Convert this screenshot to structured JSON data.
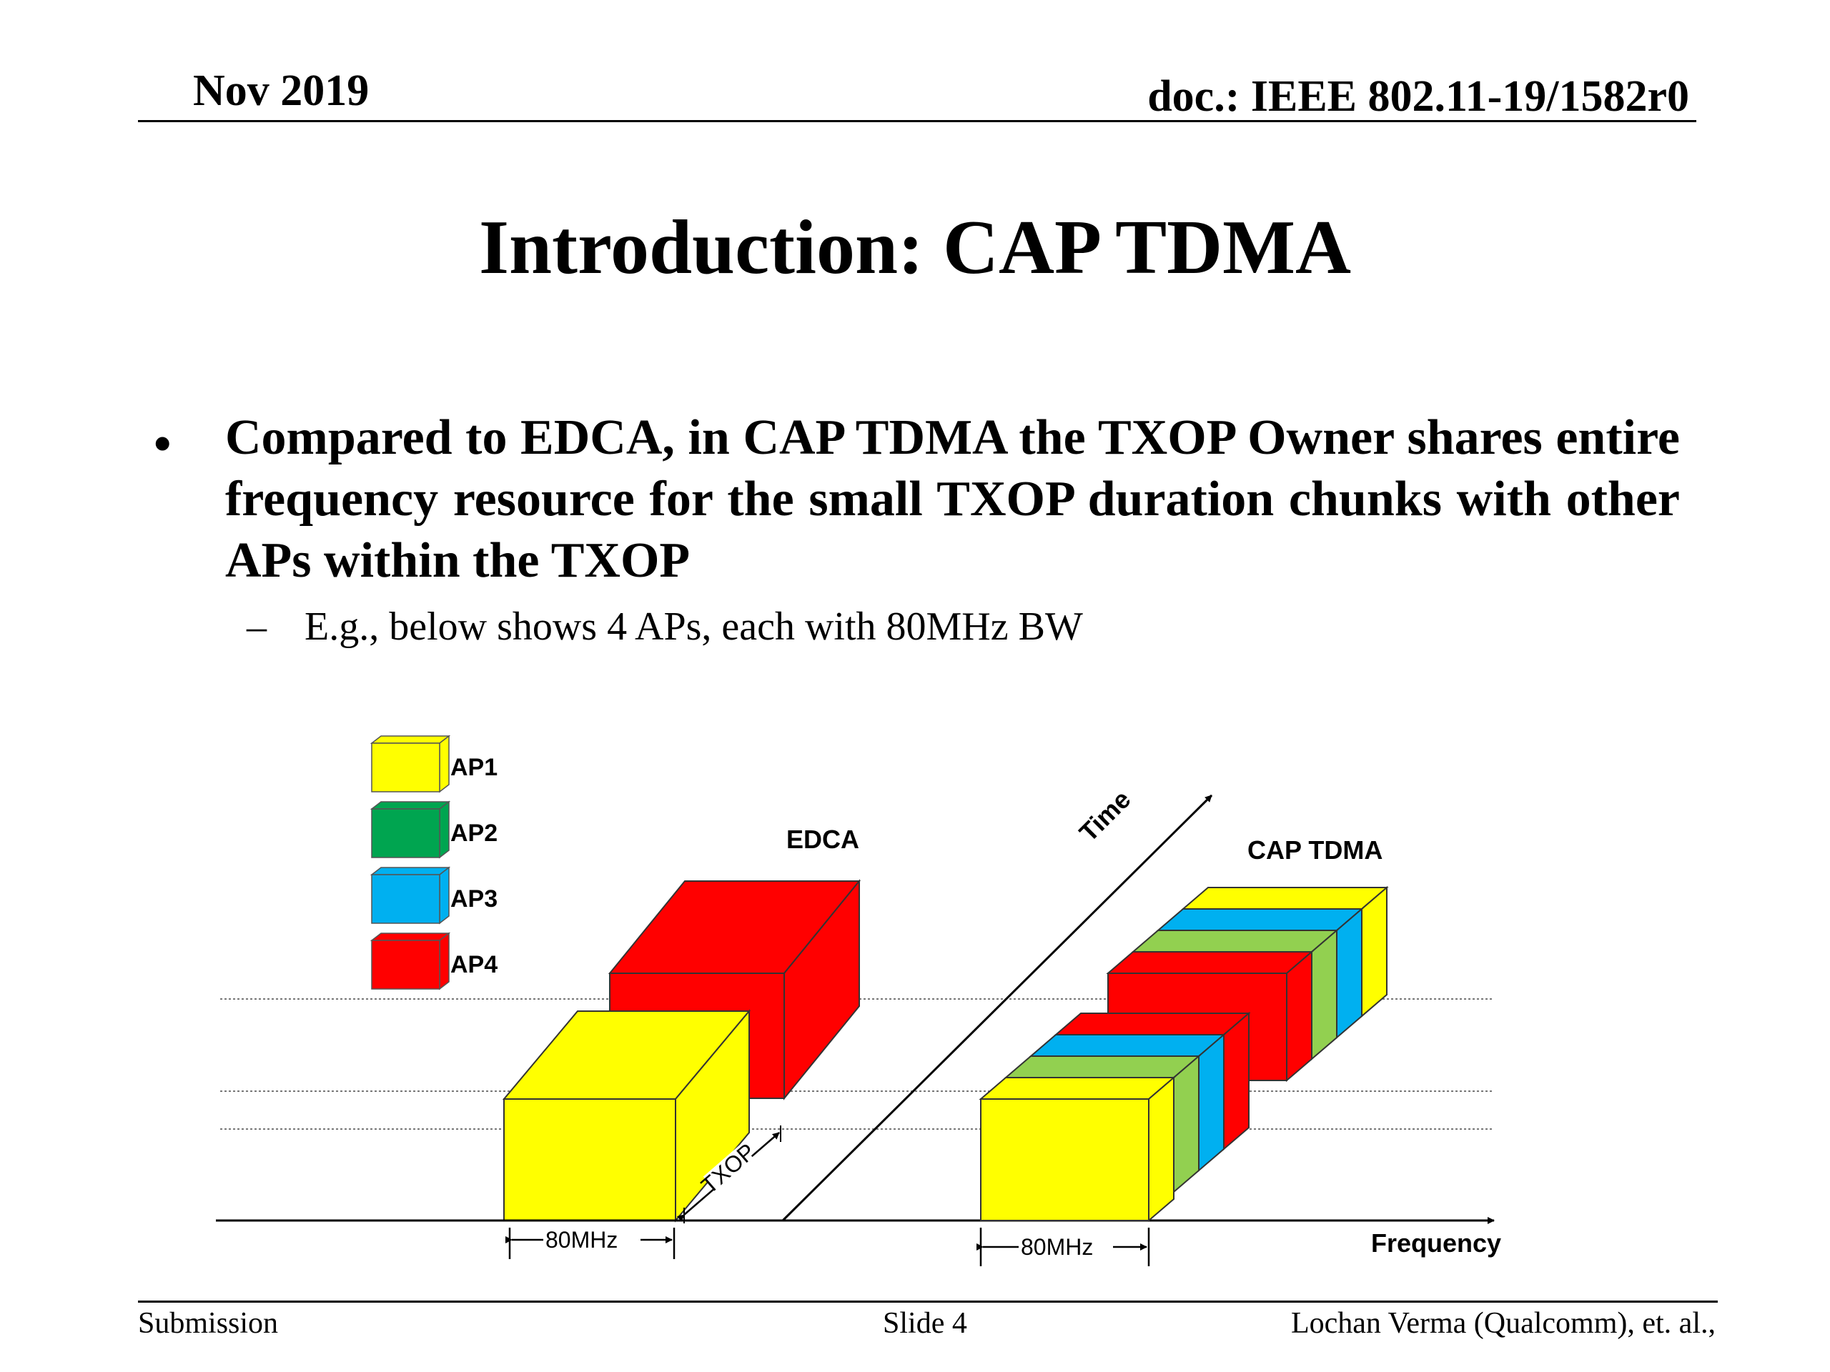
{
  "header": {
    "date": "Nov 2019",
    "doc": "doc.: IEEE 802.11-19/1582r0"
  },
  "title": "Introduction: CAP TDMA",
  "bullet": {
    "symbol": "•",
    "text": "Compared to EDCA, in CAP TDMA the TXOP Owner shares entire frequency resource for the small TXOP duration chunks with other APs within the TXOP",
    "sub_symbol": "–",
    "sub_text": "E.g., below shows 4 APs, each with 80MHz BW"
  },
  "diagram": {
    "legend": [
      {
        "label": "AP1",
        "color": "#FFFF00"
      },
      {
        "label": "AP2",
        "color": "#00A550"
      },
      {
        "label": "AP3",
        "color": "#00B0F0"
      },
      {
        "label": "AP4",
        "color": "#FF0000"
      }
    ],
    "edca_label": "EDCA",
    "cap_label": "CAP TDMA",
    "time_label": "Time",
    "frequency_label": "Frequency",
    "txop_label": "TXOP",
    "bw_left": "80MHz",
    "bw_right": "80MHz",
    "stripe_green": "#92D050"
  },
  "footer": {
    "left": "Submission",
    "center": "Slide 4",
    "right": "Lochan Verma (Qualcomm), et. al.,"
  }
}
